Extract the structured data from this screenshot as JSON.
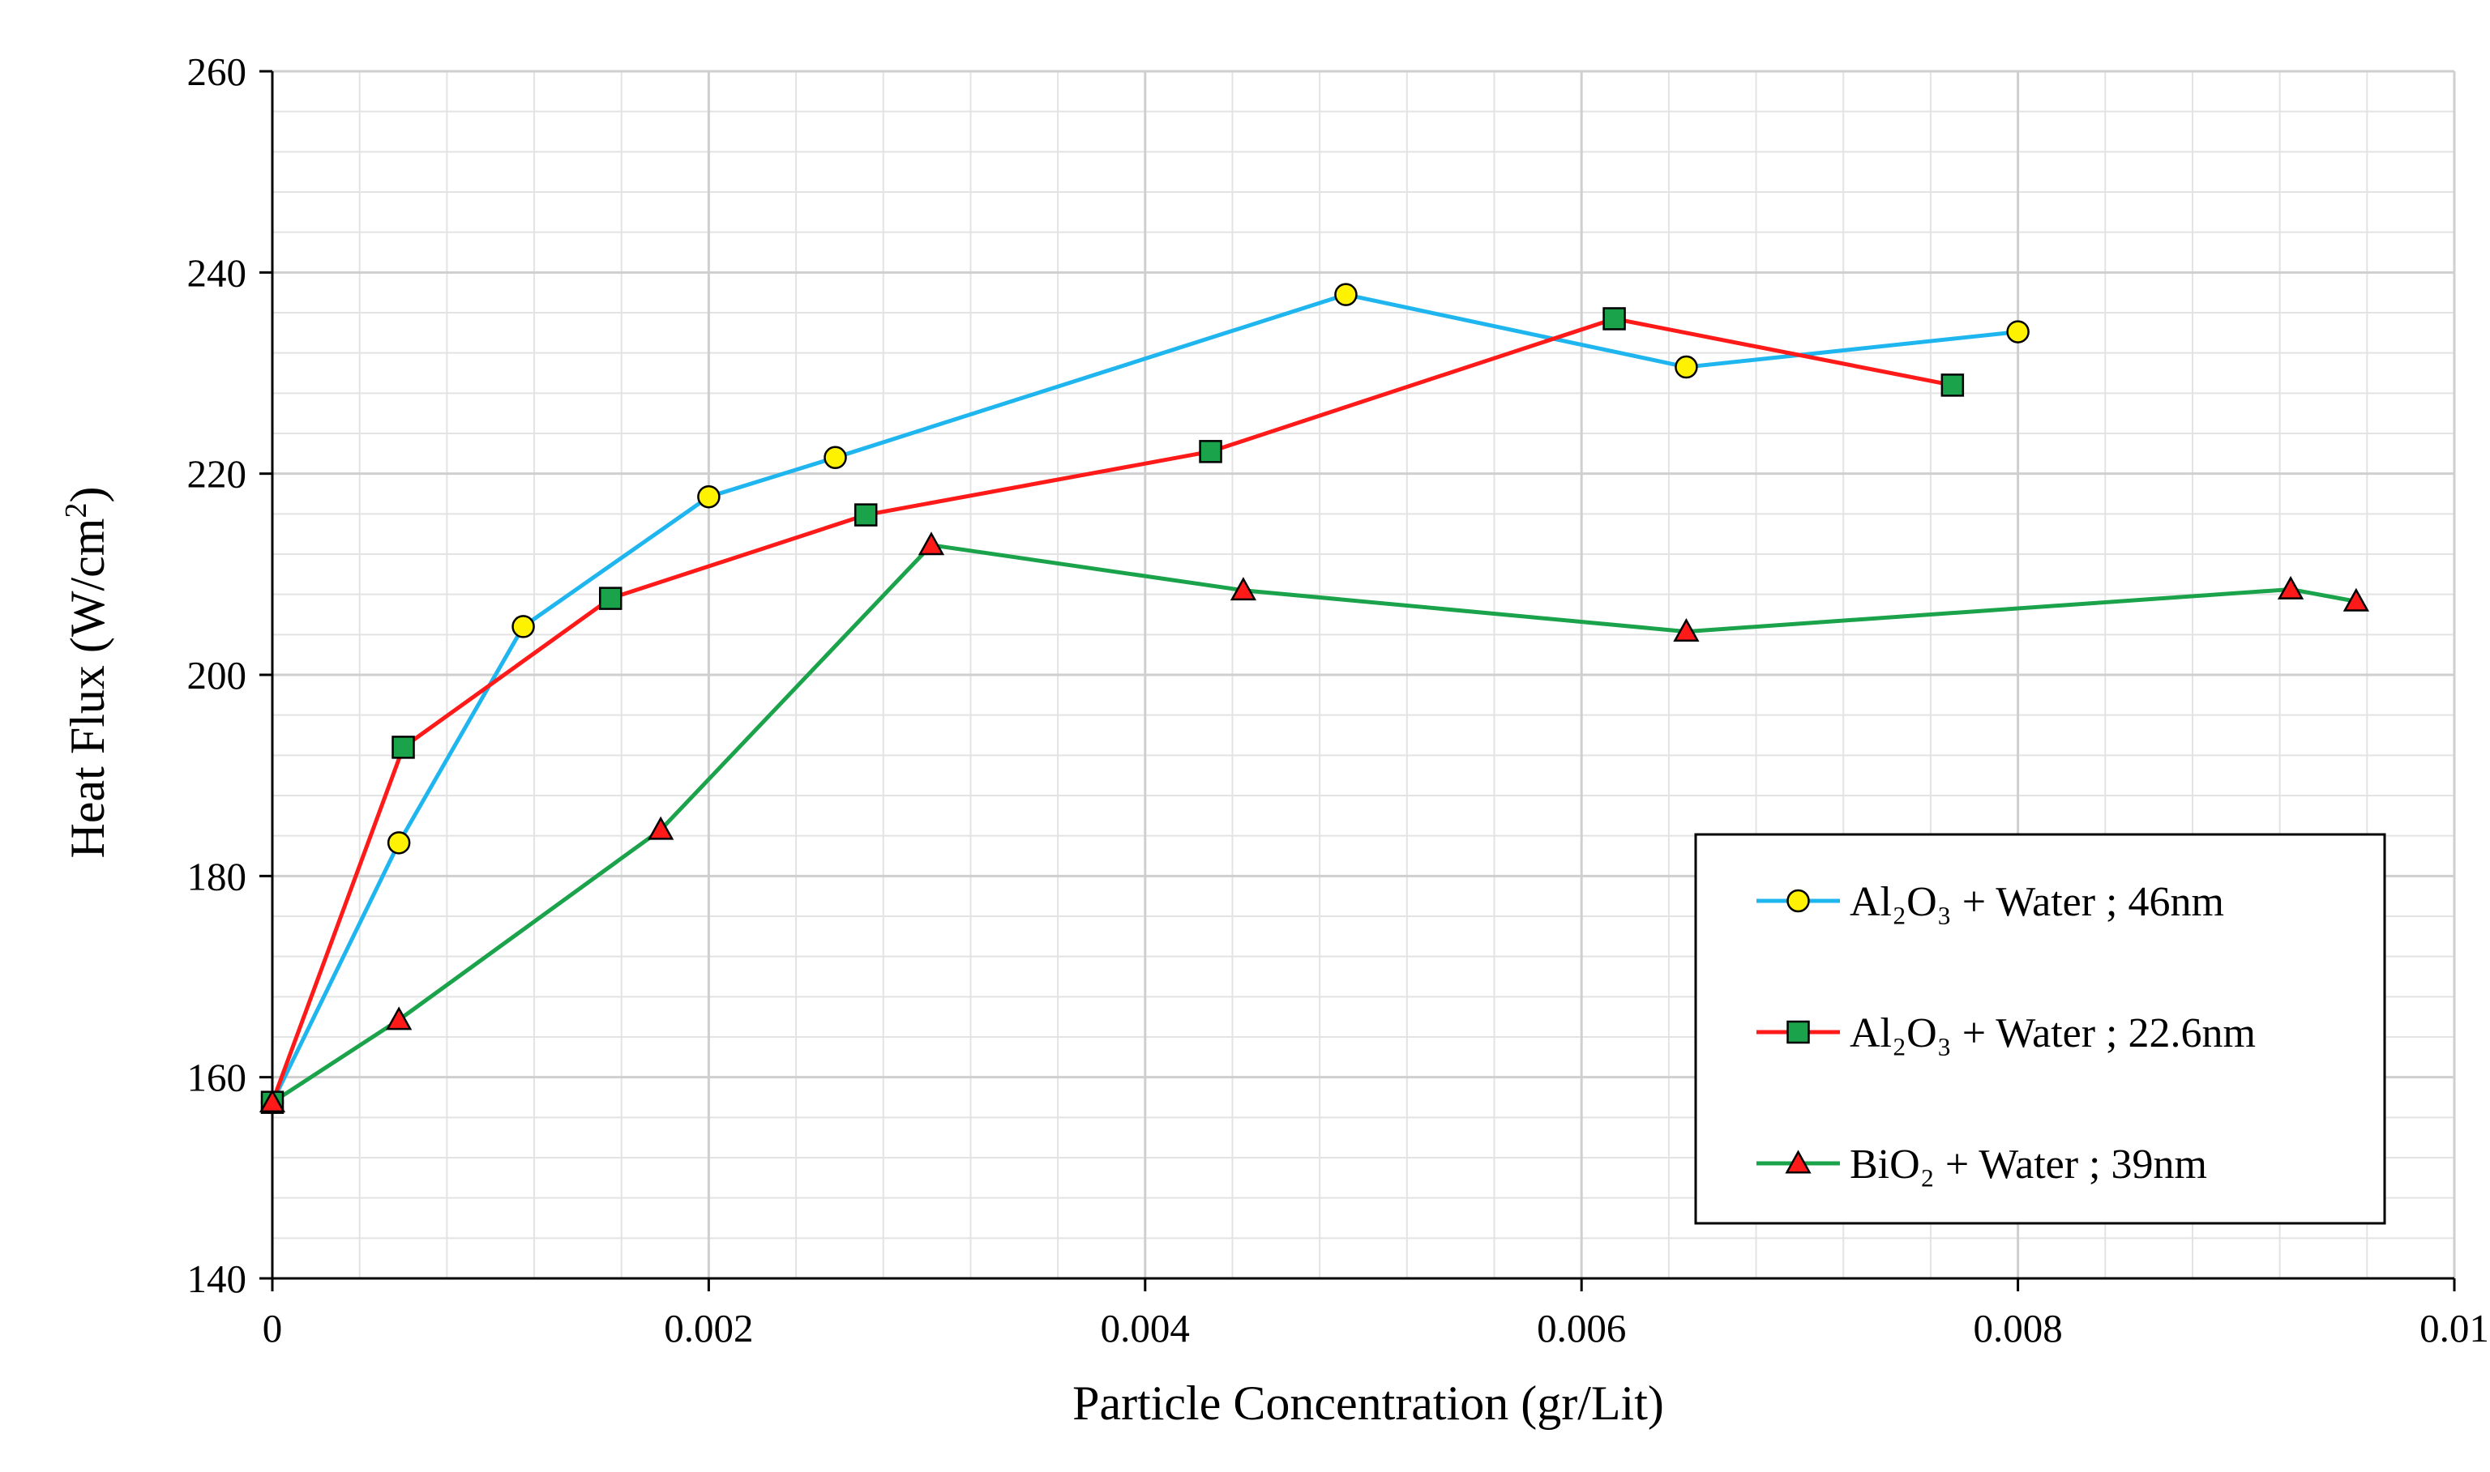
{
  "chart_data": {
    "type": "line",
    "title": "",
    "xlabel": "Particle Concentration  (gr/Lit)",
    "ylabel_main": "Heat Flux (W/cm",
    "ylabel_sup": "2",
    "ylabel_close": ")",
    "xlim": [
      0,
      0.01
    ],
    "ylim": [
      140,
      260
    ],
    "xticks": [
      0,
      0.002,
      0.004,
      0.006,
      0.008,
      0.01
    ],
    "xtick_labels": [
      "0",
      "0.002",
      "0.004",
      "0.006",
      "0.008",
      "0.01"
    ],
    "yticks": [
      140,
      160,
      180,
      200,
      220,
      240,
      260
    ],
    "ytick_labels": [
      "140",
      "160",
      "180",
      "200",
      "220",
      "240",
      "260"
    ],
    "grid": true,
    "legend_position": "bottom-right",
    "series": [
      {
        "name": "Al₂O₃ + Water ; 46nm",
        "color": "#1FB6F0",
        "marker": "circle",
        "marker_fill": "#FFF200",
        "x": [
          0,
          0.00058,
          0.00115,
          0.002,
          0.00258,
          0.00492,
          0.00648,
          0.008
        ],
        "y": [
          157.5,
          183.3,
          204.8,
          217.7,
          221.6,
          237.8,
          230.6,
          234.1
        ]
      },
      {
        "name": "Al₂O₃ + Water ; 22.6nm",
        "color": "#FF1A1A",
        "marker": "square",
        "marker_fill": "#1AA34A",
        "x": [
          0,
          0.0006,
          0.00155,
          0.00272,
          0.0043,
          0.00615,
          0.0077
        ],
        "y": [
          157.5,
          192.8,
          207.6,
          215.9,
          222.2,
          235.4,
          228.8
        ]
      },
      {
        "name": "BiO₂ + Water ; 39nm",
        "color": "#1AA34A",
        "marker": "triangle",
        "marker_fill": "#FF1A1A",
        "x": [
          0,
          0.00058,
          0.00178,
          0.00302,
          0.00445,
          0.00648,
          0.00925,
          0.00955
        ],
        "y": [
          157.5,
          165.7,
          184.6,
          212.9,
          208.4,
          204.3,
          208.5,
          207.3
        ]
      }
    ]
  }
}
